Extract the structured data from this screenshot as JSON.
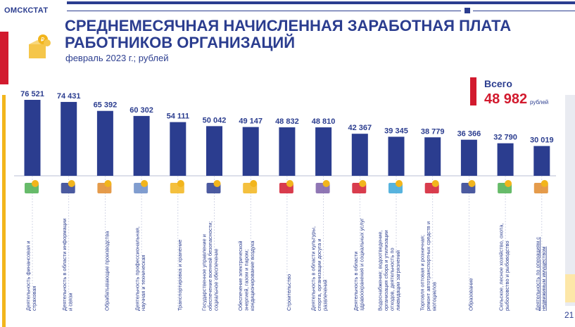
{
  "header": {
    "brand": "ОМСКСТАТ"
  },
  "title": "СРЕДНЕМЕСЯЧНАЯ НАЧИСЛЕННАЯ ЗАРАБОТНАЯ ПЛАТА РАБОТНИКОВ ОРГАНИЗАЦИЙ",
  "subtitle": "февраль 2023 г.; рублей",
  "total": {
    "label": "Всего",
    "value": "48 982",
    "unit": "рублей"
  },
  "page_number": "21",
  "colors": {
    "bar": "#2b3d8f",
    "accent": "#d21a2e",
    "yellow": "#f2b51c"
  },
  "chart_data": {
    "type": "bar",
    "title": "СРЕДНЕМЕСЯЧНАЯ НАЧИСЛЕННАЯ ЗАРАБОТНАЯ ПЛАТА РАБОТНИКОВ ОРГАНИЗАЦИЙ",
    "ylabel": "рублей",
    "ylim": [
      0,
      80000
    ],
    "categories": [
      "Деятельность финансовая и страховая",
      "Деятельность в области информации и связи",
      "Обрабатывающие производства",
      "Деятельность профессиональная, научная и техническая",
      "Транспортировка и хранение",
      "Государственное управление и обеспечение военной безопасности; социальное обеспечение",
      "Обеспечение электрической энергией, газом и паром; кондиционирование воздуха",
      "Строительство",
      "Деятельность в области культуры, спорта, организации досуга и развлечений",
      "Деятельность в области здравоохранения и социальных услуг",
      "Водоснабжение; водоотведение, организация сбора и утилизации отходов, деятельность по ликвидации загрязнений",
      "Торговля оптовая и розничная; ремонт автотранспортных средств и мотоциклов",
      "Образование",
      "Сельское, лесное хозяйство, охота, рыболовство и рыбоводство",
      "Деятельность по операциям с недвижимым имуществом"
    ],
    "values": [
      76521,
      74431,
      65392,
      60302,
      54111,
      50042,
      49147,
      48832,
      48810,
      42367,
      39345,
      38779,
      36366,
      32790,
      30019
    ],
    "value_labels": [
      "76 521",
      "74 431",
      "65 392",
      "60 302",
      "54 111",
      "50 042",
      "49 147",
      "48 832",
      "48 810",
      "42 367",
      "39 345",
      "38 779",
      "36 366",
      "32 790",
      "30 019"
    ],
    "icons": [
      "finance-icon",
      "mail-icon",
      "factory-gear-icon",
      "microscope-icon",
      "bus-icon",
      "official-icon",
      "lightbulb-icon",
      "bricks-icon",
      "theater-icon",
      "medical-icon",
      "water-pipe-icon",
      "car-icon",
      "graduation-cap-icon",
      "tools-icon",
      "house-icon"
    ]
  }
}
